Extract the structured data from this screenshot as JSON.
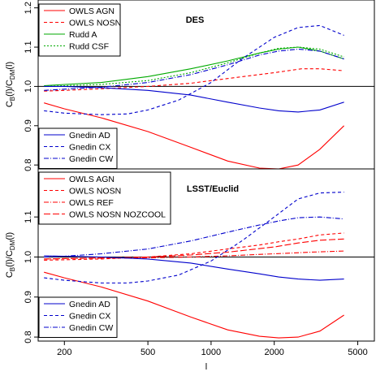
{
  "chart_data": [
    {
      "type": "line",
      "title": "DES",
      "xlabel": "l",
      "ylabel": "C_B(l)/C_DM(l)",
      "xscale": "log",
      "xlim": [
        150,
        6000
      ],
      "ylim": [
        0.79,
        1.22
      ],
      "xticks": [
        {
          "v": 200,
          "label": "200"
        },
        {
          "v": 500,
          "label": "500"
        },
        {
          "v": 1000,
          "label": "1000"
        },
        {
          "v": 2000,
          "label": "2000"
        },
        {
          "v": 5000,
          "label": "5000"
        }
      ],
      "yticks": [
        {
          "v": 0.8,
          "label": "0.8"
        },
        {
          "v": 0.9,
          "label": "0.9"
        },
        {
          "v": 1.0,
          "label": "1.0"
        },
        {
          "v": 1.1,
          "label": "1.1"
        },
        {
          "v": 1.2,
          "label": "1.2"
        }
      ],
      "reference_line": 1.0,
      "legends": [
        {
          "position": "top-left",
          "entries": [
            "OWLS AGN",
            "OWLS NOSN",
            "Rudd A",
            "Rudd CSF"
          ]
        },
        {
          "position": "bottom-left",
          "entries": [
            "Gnedin AD",
            "Gnedin CX",
            "Gnedin CW"
          ]
        }
      ],
      "series": [
        {
          "name": "OWLS AGN",
          "color": "#ff0000",
          "dash": "solid",
          "x": [
            160,
            200,
            300,
            500,
            800,
            1200,
            1700,
            2100,
            2600,
            3300,
            4300
          ],
          "y": [
            0.958,
            0.943,
            0.92,
            0.885,
            0.845,
            0.81,
            0.792,
            0.79,
            0.8,
            0.84,
            0.9
          ]
        },
        {
          "name": "OWLS NOSN",
          "color": "#ff0000",
          "dash": "4,3",
          "x": [
            160,
            200,
            300,
            500,
            800,
            1200,
            2000,
            2700,
            3300,
            4300
          ],
          "y": [
            0.988,
            0.99,
            0.994,
            1.0,
            1.008,
            1.02,
            1.035,
            1.045,
            1.045,
            1.04
          ]
        },
        {
          "name": "Rudd A",
          "color": "#00aa00",
          "dash": "solid",
          "x": [
            160,
            200,
            300,
            500,
            800,
            1200,
            1700,
            2100,
            2600,
            3300,
            4300
          ],
          "y": [
            1.002,
            1.005,
            1.01,
            1.025,
            1.045,
            1.065,
            1.085,
            1.095,
            1.1,
            1.09,
            1.07
          ]
        },
        {
          "name": "Rudd CSF",
          "color": "#00aa00",
          "dash": "2,2",
          "x": [
            160,
            200,
            300,
            500,
            800,
            1200,
            1700,
            2100,
            2600,
            3300,
            4300
          ],
          "y": [
            1.0,
            1.002,
            1.005,
            1.015,
            1.035,
            1.06,
            1.085,
            1.097,
            1.1,
            1.095,
            1.075
          ]
        },
        {
          "name": "Gnedin AD",
          "color": "#0000cc",
          "dash": "solid",
          "x": [
            160,
            200,
            300,
            500,
            800,
            1200,
            1700,
            2100,
            2600,
            3300,
            4300
          ],
          "y": [
            1.0,
            1.0,
            0.997,
            0.99,
            0.978,
            0.96,
            0.945,
            0.938,
            0.935,
            0.94,
            0.96
          ]
        },
        {
          "name": "Gnedin CX",
          "color": "#0000cc",
          "dash": "4,3",
          "x": [
            160,
            200,
            300,
            400,
            500,
            700,
            1000,
            1400,
            2000,
            2600,
            3300,
            4300
          ],
          "y": [
            0.938,
            0.932,
            0.928,
            0.93,
            0.94,
            0.965,
            1.01,
            1.07,
            1.125,
            1.15,
            1.155,
            1.13
          ]
        },
        {
          "name": "Gnedin CW",
          "color": "#0000cc",
          "dash": "6,2,1,2",
          "x": [
            160,
            200,
            300,
            500,
            800,
            1200,
            1700,
            2100,
            2600,
            3300,
            4300
          ],
          "y": [
            0.99,
            0.993,
            0.998,
            1.01,
            1.03,
            1.055,
            1.08,
            1.09,
            1.095,
            1.09,
            1.07
          ]
        }
      ]
    },
    {
      "type": "line",
      "title": "LSST/Euclid",
      "xlabel": "l",
      "ylabel": "C_B(l)/C_DM(l)",
      "xscale": "log",
      "xlim": [
        150,
        6000
      ],
      "ylim": [
        0.79,
        1.22
      ],
      "xticks": [
        {
          "v": 200,
          "label": "200"
        },
        {
          "v": 500,
          "label": "500"
        },
        {
          "v": 1000,
          "label": "1000"
        },
        {
          "v": 2000,
          "label": "2000"
        },
        {
          "v": 5000,
          "label": "5000"
        }
      ],
      "yticks": [
        {
          "v": 0.8,
          "label": "0.8"
        },
        {
          "v": 0.9,
          "label": "0.9"
        },
        {
          "v": 1.0,
          "label": "1.0"
        },
        {
          "v": 1.1,
          "label": "1.1"
        }
      ],
      "reference_line": 1.0,
      "legends": [
        {
          "position": "top-left",
          "entries": [
            "OWLS AGN",
            "OWLS NOSN",
            "OWLS REF",
            "OWLS NOSN NOZCOOL"
          ]
        },
        {
          "position": "bottom-left",
          "entries": [
            "Gnedin AD",
            "Gnedin CX",
            "Gnedin CW"
          ]
        }
      ],
      "series": [
        {
          "name": "OWLS AGN",
          "color": "#ff0000",
          "dash": "solid",
          "x": [
            160,
            200,
            300,
            500,
            800,
            1200,
            1700,
            2100,
            2600,
            3300,
            4300
          ],
          "y": [
            0.962,
            0.948,
            0.925,
            0.89,
            0.85,
            0.818,
            0.802,
            0.798,
            0.8,
            0.815,
            0.855
          ]
        },
        {
          "name": "OWLS NOSN",
          "color": "#ff0000",
          "dash": "4,3",
          "x": [
            160,
            200,
            300,
            500,
            800,
            1200,
            1700,
            2100,
            2600,
            3300,
            4300
          ],
          "y": [
            0.992,
            0.993,
            0.995,
            1.0,
            1.008,
            1.02,
            1.03,
            1.038,
            1.045,
            1.055,
            1.06
          ]
        },
        {
          "name": "OWLS REF",
          "color": "#ff0000",
          "dash": "6,2,1,2",
          "x": [
            160,
            200,
            300,
            500,
            800,
            1200,
            2000,
            3000,
            4300
          ],
          "y": [
            0.995,
            0.996,
            0.997,
            0.998,
            1.0,
            1.003,
            1.008,
            1.012,
            1.015
          ]
        },
        {
          "name": "OWLS NOSN NOZCOOL",
          "color": "#ff0000",
          "dash": "8,3",
          "x": [
            160,
            200,
            300,
            500,
            800,
            1200,
            2000,
            2600,
            3300,
            4300
          ],
          "y": [
            0.995,
            0.996,
            0.998,
            1.0,
            1.005,
            1.012,
            1.025,
            1.035,
            1.042,
            1.045
          ]
        },
        {
          "name": "Gnedin AD",
          "color": "#0000cc",
          "dash": "solid",
          "x": [
            160,
            200,
            300,
            500,
            800,
            1200,
            1700,
            2100,
            2600,
            3300,
            4300
          ],
          "y": [
            1.003,
            1.002,
            1.0,
            0.995,
            0.985,
            0.97,
            0.958,
            0.95,
            0.945,
            0.942,
            0.945
          ]
        },
        {
          "name": "Gnedin CX",
          "color": "#0000cc",
          "dash": "4,3",
          "x": [
            160,
            200,
            300,
            400,
            500,
            700,
            1000,
            1400,
            2000,
            2600,
            3300,
            4300
          ],
          "y": [
            0.948,
            0.942,
            0.935,
            0.935,
            0.94,
            0.955,
            0.99,
            1.04,
            1.1,
            1.145,
            1.16,
            1.162
          ]
        },
        {
          "name": "Gnedin CW",
          "color": "#0000cc",
          "dash": "6,2,1,2",
          "x": [
            160,
            200,
            300,
            500,
            800,
            1200,
            1700,
            2100,
            2600,
            3300,
            4300
          ],
          "y": [
            1.0,
            1.002,
            1.008,
            1.02,
            1.04,
            1.062,
            1.08,
            1.09,
            1.098,
            1.1,
            1.095
          ]
        }
      ]
    }
  ]
}
